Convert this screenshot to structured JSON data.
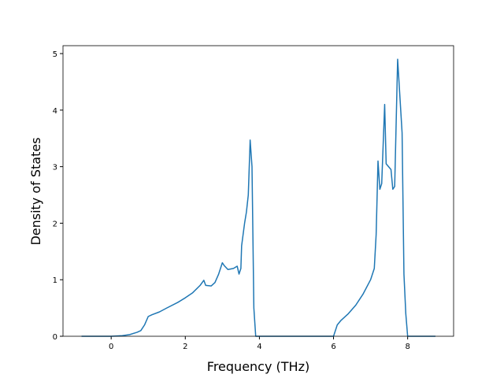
{
  "chart_data": {
    "type": "line",
    "xlabel": "Frequency (THz)",
    "ylabel": "Density of States",
    "series": [
      {
        "color": "#1f77b4",
        "x": [
          -0.8,
          0,
          0.3,
          0.5,
          0.7,
          0.8,
          0.9,
          1.0,
          1.1,
          1.3,
          1.5,
          1.8,
          2.0,
          2.2,
          2.4,
          2.5,
          2.55,
          2.7,
          2.8,
          2.9,
          3.0,
          3.05,
          3.15,
          3.3,
          3.4,
          3.45,
          3.5,
          3.52,
          3.6,
          3.65,
          3.7,
          3.75,
          3.8,
          3.85,
          3.9,
          6.0,
          6.1,
          6.2,
          6.4,
          6.6,
          6.8,
          7.0,
          7.1,
          7.15,
          7.2,
          7.25,
          7.3,
          7.38,
          7.42,
          7.55,
          7.6,
          7.65,
          7.73,
          7.85,
          7.9,
          7.95,
          8.0,
          8.75
        ],
        "values": [
          0,
          0,
          0.01,
          0.03,
          0.07,
          0.1,
          0.2,
          0.35,
          0.38,
          0.43,
          0.5,
          0.6,
          0.68,
          0.77,
          0.9,
          0.99,
          0.9,
          0.89,
          0.95,
          1.1,
          1.3,
          1.25,
          1.18,
          1.2,
          1.24,
          1.1,
          1.2,
          1.6,
          2.0,
          2.2,
          2.5,
          3.47,
          3.0,
          0.5,
          0,
          0,
          0.2,
          0.28,
          0.4,
          0.55,
          0.75,
          1.0,
          1.2,
          1.8,
          3.1,
          2.6,
          2.7,
          4.1,
          3.05,
          2.95,
          2.6,
          2.65,
          4.9,
          3.6,
          1.1,
          0.4,
          0,
          0
        ]
      }
    ],
    "xlim": [
      -1.3,
      9.24
    ],
    "ylim": [
      0,
      5.14
    ],
    "xticks": [
      0,
      2,
      4,
      6,
      8
    ],
    "yticks": [
      0,
      1,
      2,
      3,
      4,
      5
    ]
  }
}
